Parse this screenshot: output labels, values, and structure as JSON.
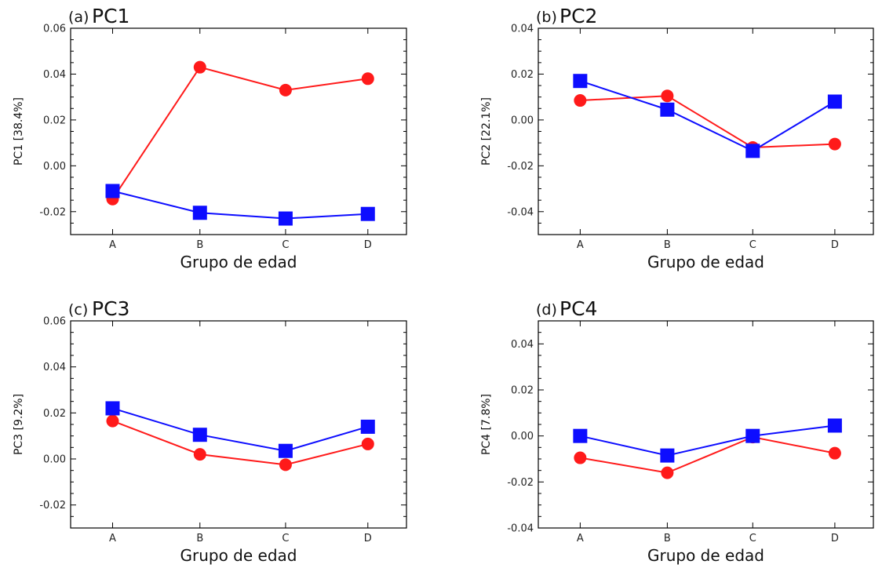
{
  "colors": {
    "red_series": "#ff1a1a",
    "blue_series": "#0d0dff"
  },
  "chart_data": [
    {
      "type": "line",
      "panel_tag": "(a)",
      "title": "PC1",
      "xlabel": "Grupo de edad",
      "ylabel": "PC1 [38.4%]",
      "categories": [
        "A",
        "B",
        "C",
        "D"
      ],
      "ylim": [
        -0.03,
        0.06
      ],
      "yticks": [
        -0.02,
        0.0,
        0.02,
        0.04,
        0.06
      ],
      "ytick_labels": [
        "-0.02",
        "0.00",
        "0.02",
        "0.04",
        "0.06"
      ],
      "series": [
        {
          "color": "#ff1a1a",
          "marker": "circle",
          "values": [
            -0.0145,
            0.043,
            0.033,
            0.038
          ]
        },
        {
          "color": "#0d0dff",
          "marker": "square",
          "values": [
            -0.011,
            -0.0205,
            -0.023,
            -0.021
          ]
        }
      ]
    },
    {
      "type": "line",
      "panel_tag": "(b)",
      "title": "PC2",
      "xlabel": "Grupo de edad",
      "ylabel": "PC2 [22.1%]",
      "categories": [
        "A",
        "B",
        "C",
        "D"
      ],
      "ylim": [
        -0.05,
        0.04
      ],
      "yticks": [
        -0.04,
        -0.02,
        0.0,
        0.02,
        0.04
      ],
      "ytick_labels": [
        "-0.04",
        "-0.02",
        "0.00",
        "0.02",
        "0.04"
      ],
      "series": [
        {
          "color": "#ff1a1a",
          "marker": "circle",
          "values": [
            0.0085,
            0.0105,
            -0.012,
            -0.0105
          ]
        },
        {
          "color": "#0d0dff",
          "marker": "square",
          "values": [
            0.017,
            0.0045,
            -0.0135,
            0.008
          ]
        }
      ]
    },
    {
      "type": "line",
      "panel_tag": "(c)",
      "title": "PC3",
      "xlabel": "Grupo de edad",
      "ylabel": "PC3 [9.2%]",
      "categories": [
        "A",
        "B",
        "C",
        "D"
      ],
      "ylim": [
        -0.03,
        0.06
      ],
      "yticks": [
        -0.02,
        0.0,
        0.02,
        0.04,
        0.06
      ],
      "ytick_labels": [
        "-0.02",
        "0.00",
        "0.02",
        "0.04",
        "0.06"
      ],
      "series": [
        {
          "color": "#ff1a1a",
          "marker": "circle",
          "values": [
            0.0165,
            0.002,
            -0.0025,
            0.0065
          ]
        },
        {
          "color": "#0d0dff",
          "marker": "square",
          "values": [
            0.022,
            0.0105,
            0.0035,
            0.014
          ]
        }
      ]
    },
    {
      "type": "line",
      "panel_tag": "(d)",
      "title": "PC4",
      "xlabel": "Grupo de edad",
      "ylabel": "PC4 [7.8%]",
      "categories": [
        "A",
        "B",
        "C",
        "D"
      ],
      "ylim": [
        -0.04,
        0.05
      ],
      "yticks": [
        -0.04,
        -0.02,
        0.0,
        0.02,
        0.04
      ],
      "ytick_labels": [
        "-0.04",
        "-0.02",
        "0.00",
        "0.02",
        "0.04"
      ],
      "series": [
        {
          "color": "#ff1a1a",
          "marker": "circle",
          "values": [
            -0.0095,
            -0.016,
            -0.0005,
            -0.0075
          ]
        },
        {
          "color": "#0d0dff",
          "marker": "square",
          "values": [
            0.0,
            -0.0085,
            0.0,
            0.0045
          ]
        }
      ]
    }
  ]
}
